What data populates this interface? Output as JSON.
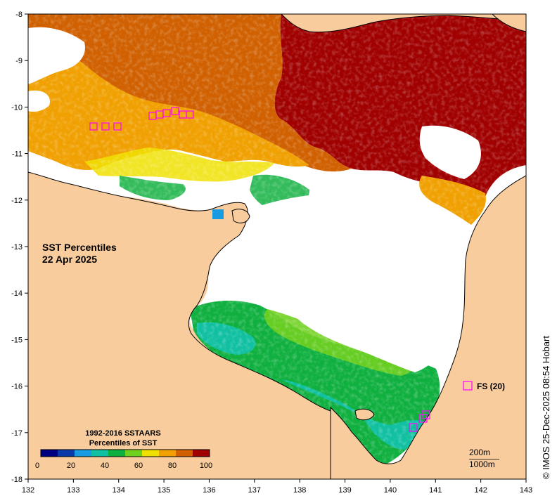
{
  "map": {
    "title_line1": "SST Percentiles",
    "title_line2": "22 Apr 2025",
    "x_ticks": [
      "132",
      "133",
      "134",
      "135",
      "136",
      "137",
      "138",
      "139",
      "140",
      "141",
      "142",
      "143"
    ],
    "y_ticks": [
      "-8",
      "-9",
      "-10",
      "-11",
      "-12",
      "-13",
      "-14",
      "-15",
      "-16",
      "-17",
      "-18"
    ],
    "land_color": "#f9cc9d",
    "no_data_color": "#ffffff"
  },
  "colorbar": {
    "title_line1": "1992-2016 SSTAARS",
    "title_line2": "Percentiles of SST",
    "tick_labels": [
      "0",
      "20",
      "40",
      "60",
      "80",
      "100"
    ],
    "colors": [
      "#000080",
      "#0a3aa8",
      "#1a9ae0",
      "#10c0a0",
      "#10b040",
      "#70d020",
      "#f0e000",
      "#f0a000",
      "#d06000",
      "#a00000"
    ]
  },
  "legend": {
    "marker_label": "FS (20)",
    "marker_color": "#ff00ff"
  },
  "notes": {
    "contour1": "200m",
    "contour2": "1000m",
    "credit": "© IMOS 25-Dec-2025 08:54 Hobart"
  }
}
